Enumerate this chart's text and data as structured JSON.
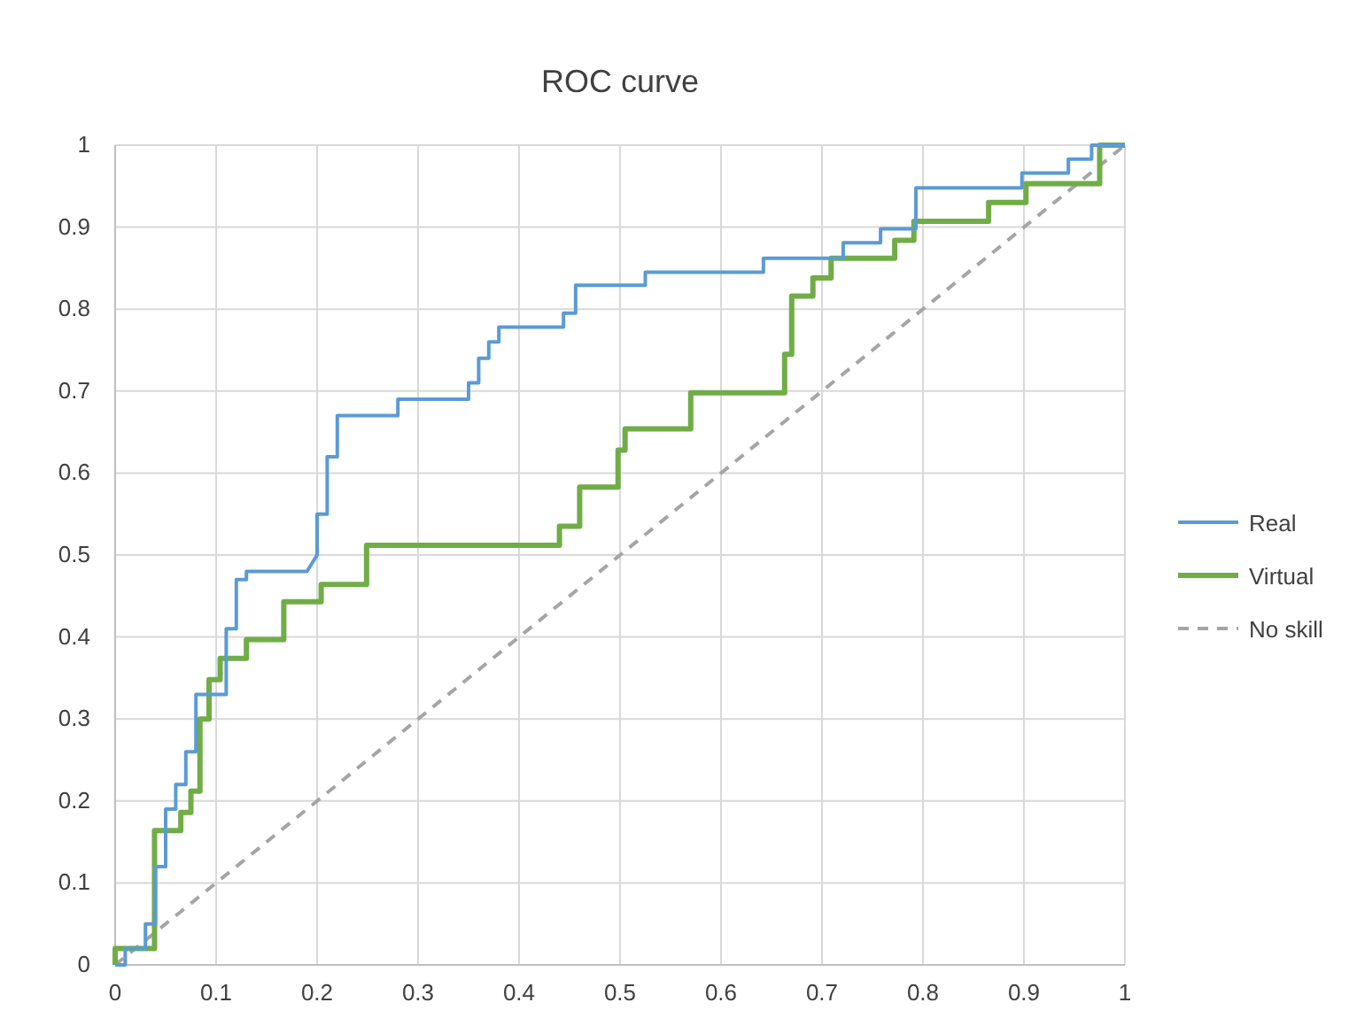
{
  "chart_data": {
    "type": "line",
    "title": "ROC curve",
    "xlim": [
      0,
      1
    ],
    "ylim": [
      0,
      1
    ],
    "xticks": [
      0,
      0.1,
      0.2,
      0.3,
      0.4,
      0.5,
      0.6,
      0.7,
      0.8,
      0.9,
      1
    ],
    "yticks": [
      0,
      0.1,
      0.2,
      0.3,
      0.4,
      0.5,
      0.6,
      0.7,
      0.8,
      0.9,
      1
    ],
    "grid": true,
    "legend": "right",
    "marker": "none",
    "series": [
      {
        "name": "Real",
        "color": "#5b9bd5",
        "line_style": "solid",
        "x": [
          0,
          0.01,
          0.01,
          0.03,
          0.03,
          0.04,
          0.04,
          0.05,
          0.05,
          0.06,
          0.06,
          0.07,
          0.07,
          0.08,
          0.08,
          0.11,
          0.11,
          0.12,
          0.12,
          0.13,
          0.13,
          0.19,
          0.2,
          0.2,
          0.21,
          0.21,
          0.22,
          0.22,
          0.28,
          0.28,
          0.35,
          0.35,
          0.36,
          0.36,
          0.37,
          0.37,
          0.38,
          0.38,
          0.444,
          0.444,
          0.456,
          0.456,
          0.525,
          0.525,
          0.642,
          0.642,
          0.721,
          0.721,
          0.758,
          0.758,
          0.793,
          0.793,
          0.898,
          0.898,
          0.944,
          0.944,
          0.967,
          0.967,
          1
        ],
        "values": [
          0,
          0,
          0.02,
          0.02,
          0.05,
          0.05,
          0.12,
          0.12,
          0.19,
          0.19,
          0.22,
          0.22,
          0.26,
          0.26,
          0.33,
          0.33,
          0.41,
          0.41,
          0.47,
          0.47,
          0.48,
          0.48,
          0.5,
          0.55,
          0.55,
          0.62,
          0.62,
          0.67,
          0.67,
          0.69,
          0.69,
          0.71,
          0.71,
          0.74,
          0.74,
          0.76,
          0.76,
          0.778,
          0.778,
          0.795,
          0.795,
          0.829,
          0.829,
          0.845,
          0.845,
          0.862,
          0.862,
          0.881,
          0.881,
          0.898,
          0.898,
          0.948,
          0.948,
          0.966,
          0.966,
          0.983,
          0.983,
          1,
          1
        ]
      },
      {
        "name": "Virtual",
        "color": "#70ad47",
        "line_style": "solid",
        "x": [
          0,
          0,
          0.039,
          0.039,
          0.065,
          0.065,
          0.075,
          0.075,
          0.084,
          0.084,
          0.093,
          0.093,
          0.104,
          0.104,
          0.13,
          0.13,
          0.167,
          0.167,
          0.204,
          0.204,
          0.249,
          0.249,
          0.44,
          0.44,
          0.46,
          0.46,
          0.498,
          0.498,
          0.505,
          0.505,
          0.57,
          0.57,
          0.663,
          0.663,
          0.67,
          0.67,
          0.691,
          0.691,
          0.709,
          0.709,
          0.772,
          0.772,
          0.791,
          0.791,
          0.865,
          0.865,
          0.902,
          0.902,
          0.975,
          0.975,
          1
        ],
        "values": [
          0,
          0.02,
          0.02,
          0.164,
          0.164,
          0.186,
          0.186,
          0.212,
          0.212,
          0.3,
          0.3,
          0.348,
          0.348,
          0.374,
          0.374,
          0.397,
          0.397,
          0.443,
          0.443,
          0.464,
          0.464,
          0.512,
          0.512,
          0.535,
          0.535,
          0.583,
          0.583,
          0.628,
          0.628,
          0.654,
          0.654,
          0.698,
          0.698,
          0.745,
          0.745,
          0.816,
          0.816,
          0.838,
          0.838,
          0.862,
          0.862,
          0.884,
          0.884,
          0.907,
          0.907,
          0.93,
          0.93,
          0.953,
          0.953,
          1,
          1
        ]
      },
      {
        "name": "No skill",
        "color": "#a5a5a5",
        "line_style": "dashed",
        "x": [
          0,
          1
        ],
        "values": [
          0,
          1
        ]
      }
    ]
  }
}
